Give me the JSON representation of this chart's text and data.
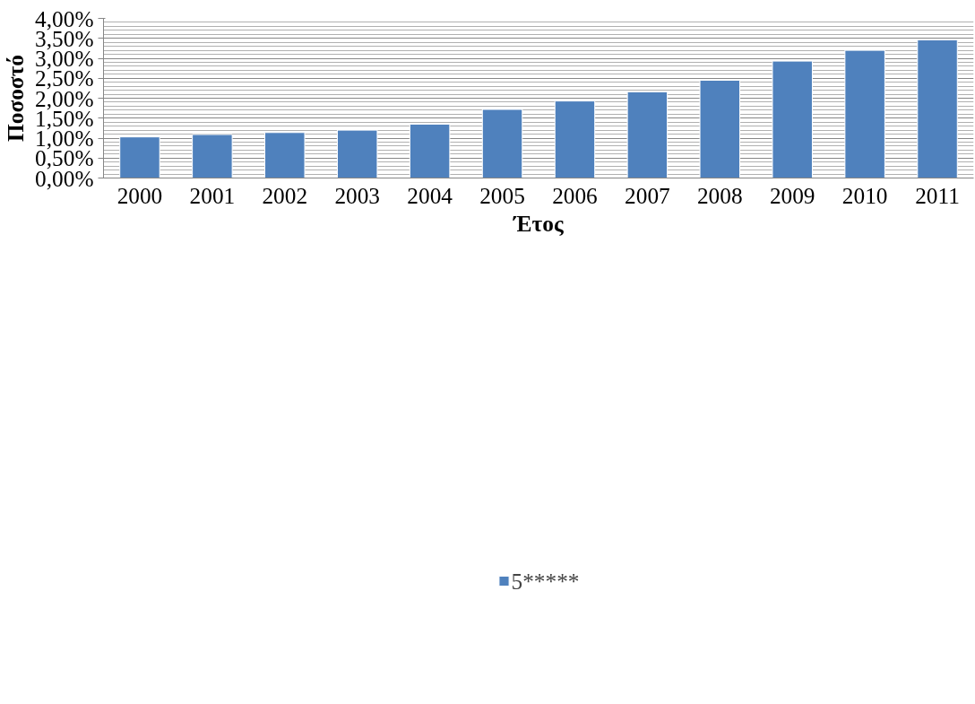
{
  "chart_data": {
    "type": "bar",
    "xlabel": "Έτος",
    "ylabel": "Ποσοστό",
    "categories": [
      "2000",
      "2001",
      "2002",
      "2003",
      "2004",
      "2005",
      "2006",
      "2007",
      "2008",
      "2009",
      "2010",
      "2011"
    ],
    "series": [
      {
        "name": "5*****",
        "color": "#4f81bd",
        "values": [
          1.03,
          1.09,
          1.14,
          1.2,
          1.35,
          1.72,
          1.93,
          2.16,
          2.45,
          2.93,
          3.2,
          3.46
        ]
      }
    ],
    "ylim": [
      0,
      4
    ],
    "yticks": [
      {
        "value": 0,
        "label": "0,00%"
      },
      {
        "value": 0.5,
        "label": "0,50%"
      },
      {
        "value": 1,
        "label": "1,00%"
      },
      {
        "value": 1.5,
        "label": "1,50%"
      },
      {
        "value": 2,
        "label": "2,00%"
      },
      {
        "value": 2.5,
        "label": "2,50%"
      },
      {
        "value": 3,
        "label": "3,00%"
      },
      {
        "value": 3.5,
        "label": "3,50%"
      },
      {
        "value": 4,
        "label": "4,00%"
      }
    ],
    "grid": "y",
    "legend": "bottom"
  }
}
